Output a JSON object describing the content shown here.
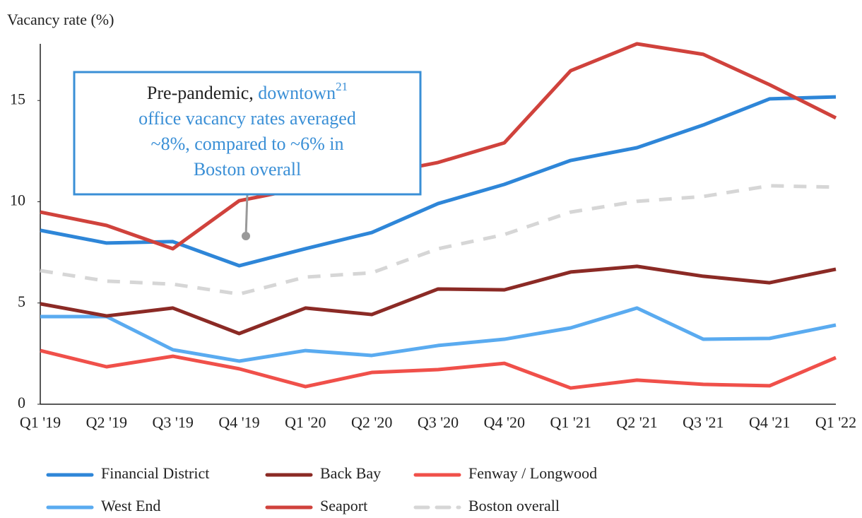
{
  "chart_data": {
    "type": "line",
    "y_label": "Vacancy rate (%)",
    "categories": [
      "Q1 '19",
      "Q2 '19",
      "Q3 '19",
      "Q4 '19",
      "Q1 '20",
      "Q2 '20",
      "Q3 '20",
      "Q4 '20",
      "Q1 '21",
      "Q2 '21",
      "Q3 '21",
      "Q4 '21",
      "Q1 '22"
    ],
    "series": [
      {
        "name": "Financial District",
        "color": "#2e86d8",
        "values": [
          8.59,
          7.96,
          8.03,
          6.84,
          7.68,
          8.48,
          9.91,
          10.86,
          12.04,
          12.67,
          13.79,
          15.08,
          15.18
        ]
      },
      {
        "name": "Back Bay",
        "color": "#8b2a25",
        "values": [
          4.96,
          4.36,
          4.75,
          3.49,
          4.75,
          4.43,
          5.69,
          5.65,
          6.53,
          6.81,
          6.32,
          6.0,
          6.67
        ]
      },
      {
        "name": "Fenway / Longwood",
        "color": "#f0504a",
        "values": [
          2.65,
          1.85,
          2.37,
          1.75,
          0.87,
          1.57,
          1.71,
          2.02,
          0.8,
          1.19,
          0.98,
          0.91,
          2.3
        ]
      },
      {
        "name": "West End",
        "color": "#5aabf0",
        "values": [
          4.33,
          4.33,
          2.69,
          2.13,
          2.65,
          2.41,
          2.9,
          3.21,
          3.77,
          4.75,
          3.21,
          3.25,
          3.91
        ]
      },
      {
        "name": "Seaport",
        "color": "#d0423c",
        "values": [
          9.49,
          8.83,
          7.68,
          10.05,
          10.7,
          11.3,
          11.94,
          12.91,
          16.47,
          17.8,
          17.28,
          15.78,
          14.14
        ]
      },
      {
        "name": "Boston overall",
        "color": "#d6d6d6",
        "dash": true,
        "values": [
          6.6,
          6.08,
          5.93,
          5.44,
          6.28,
          6.49,
          7.68,
          8.38,
          9.49,
          10.02,
          10.26,
          10.79,
          10.72
        ]
      }
    ],
    "ylim": [
      0,
      17.8
    ],
    "yticks": [
      0,
      5,
      10,
      15
    ],
    "grid": false,
    "annotation": {
      "border_color": "#3a8fd6",
      "lines": [
        [
          {
            "text": "Pre-pandemic, ",
            "color": "#222222"
          },
          {
            "text": "downtown",
            "color": "#3a8fd6"
          },
          {
            "text": "21",
            "color": "#3a8fd6",
            "sup": true
          }
        ],
        [
          {
            "text": "office vacancy rates averaged",
            "color": "#3a8fd6"
          }
        ],
        [
          {
            "text": "~8%, compared to ~6% in",
            "color": "#3a8fd6"
          }
        ],
        [
          {
            "text": "Boston overall",
            "color": "#3a8fd6"
          }
        ]
      ]
    }
  }
}
